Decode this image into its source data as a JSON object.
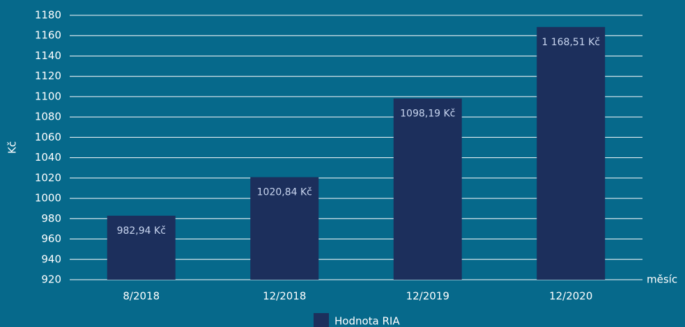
{
  "chart_data": {
    "type": "bar",
    "y_label": "Kč",
    "x_label": "měsíc",
    "categories": [
      "8/2018",
      "12/2018",
      "12/2019",
      "12/2020"
    ],
    "series": [
      {
        "name": "Hodnota RIA",
        "color": "#1c2f5c",
        "values": [
          982.94,
          1020.84,
          1098.19,
          1168.51
        ],
        "value_labels": [
          "982,94 Kč",
          "1020,84 Kč",
          "1098,19 Kč",
          "1 168,51 Kč"
        ]
      }
    ],
    "ylim": [
      920,
      1180
    ],
    "yticks": [
      920,
      940,
      960,
      980,
      1000,
      1020,
      1040,
      1060,
      1080,
      1100,
      1120,
      1140,
      1160,
      1180
    ],
    "grid": true,
    "legend": "bottom"
  }
}
